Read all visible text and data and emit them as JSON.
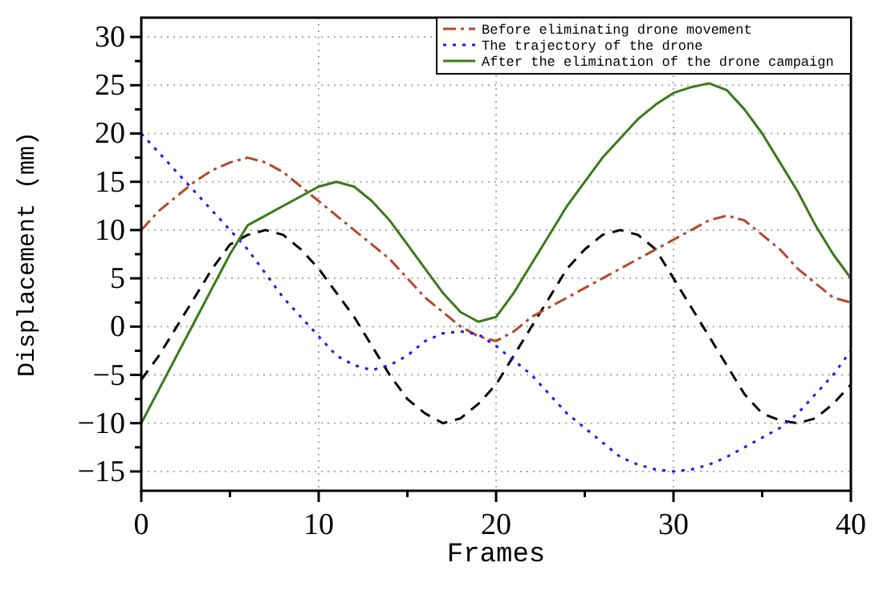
{
  "chart_data": {
    "type": "line",
    "xlabel": "Frames",
    "ylabel": "Displacement (mm)",
    "xlim": [
      0,
      40
    ],
    "ylim": [
      -17,
      32
    ],
    "xticks": [
      0,
      {
        "value": 5,
        "label": null
      },
      10,
      {
        "value": 15,
        "label": null
      },
      20,
      {
        "value": 25,
        "label": null
      },
      30,
      {
        "value": 35,
        "label": null
      },
      40
    ],
    "yticks": [
      -15,
      {
        "value": -12.5,
        "label": null
      },
      -10,
      {
        "value": -7.5,
        "label": null
      },
      -5,
      {
        "value": -2.5,
        "label": null
      },
      0,
      {
        "value": 2.5,
        "label": null
      },
      5,
      {
        "value": 7.5,
        "label": null
      },
      10,
      {
        "value": 12.5,
        "label": null
      },
      15,
      {
        "value": 17.5,
        "label": null
      },
      20,
      {
        "value": 22.5,
        "label": null
      },
      25,
      {
        "value": 27.5,
        "label": null
      },
      30
    ],
    "grid": true,
    "legend": "top right",
    "marker": "none",
    "x": [
      0,
      1,
      2,
      3,
      4,
      5,
      6,
      7,
      8,
      9,
      10,
      11,
      12,
      13,
      14,
      15,
      16,
      17,
      18,
      19,
      20,
      21,
      22,
      23,
      24,
      25,
      26,
      27,
      28,
      29,
      30,
      31,
      32,
      33,
      34,
      35,
      36,
      37,
      38,
      39,
      40
    ],
    "series": [
      {
        "color": "#000000",
        "line_style": "dashed",
        "values": [
          -5.5,
          -3,
          0,
          3,
          6,
          8.5,
          9.5,
          10,
          9.5,
          8,
          6,
          3.5,
          1,
          -2,
          -5,
          -7.5,
          -9,
          -10,
          -9.5,
          -8,
          -6,
          -3,
          0,
          3,
          6,
          8,
          9.5,
          10,
          9.5,
          8,
          5,
          2,
          -1,
          -4,
          -7,
          -9,
          -9.7,
          -10,
          -9.5,
          -8,
          -6
        ]
      },
      {
        "name": "Before eliminating drone movement",
        "color": "#b5482a",
        "line_style": "dashdot",
        "values": [
          10,
          12,
          13.5,
          15,
          16.2,
          17,
          17.5,
          17,
          16,
          14.5,
          13,
          11.5,
          10,
          8.5,
          7,
          5,
          3,
          1.5,
          0,
          -1,
          -1.5,
          -0.5,
          1,
          2,
          3,
          4,
          5,
          6,
          7,
          8,
          9,
          10,
          11,
          11.5,
          11,
          9.5,
          8,
          6,
          4.5,
          3,
          2.5
        ]
      },
      {
        "name": "The trajectory of the drone",
        "color": "#1a1aee",
        "line_style": "dotted",
        "values": [
          20,
          18,
          16,
          14,
          12,
          10,
          8,
          5.5,
          3,
          1,
          -1,
          -3,
          -4,
          -4.5,
          -4,
          -3,
          -1.5,
          -0.7,
          -0.5,
          -0.8,
          -2,
          -3.5,
          -5,
          -7,
          -9,
          -10.5,
          -12,
          -13.5,
          -14.3,
          -14.8,
          -15,
          -14.8,
          -14.3,
          -13.5,
          -12.5,
          -11.5,
          -10.5,
          -9,
          -7,
          -5,
          -2.5
        ]
      },
      {
        "name": "After the elimination of the drone campaign",
        "color": "#3a7a1a",
        "line_style": "solid",
        "values": [
          -10,
          -6.5,
          -3,
          0.5,
          4,
          7.5,
          10.5,
          11.5,
          12.5,
          13.5,
          14.5,
          15,
          14.5,
          13,
          11,
          8.5,
          6,
          3.5,
          1.5,
          0.5,
          1,
          3.5,
          6.5,
          9.5,
          12.5,
          15,
          17.5,
          19.5,
          21.5,
          23,
          24.2,
          24.8,
          25.2,
          24.5,
          22.5,
          20,
          17,
          14,
          10.5,
          7.5,
          5
        ]
      }
    ]
  }
}
